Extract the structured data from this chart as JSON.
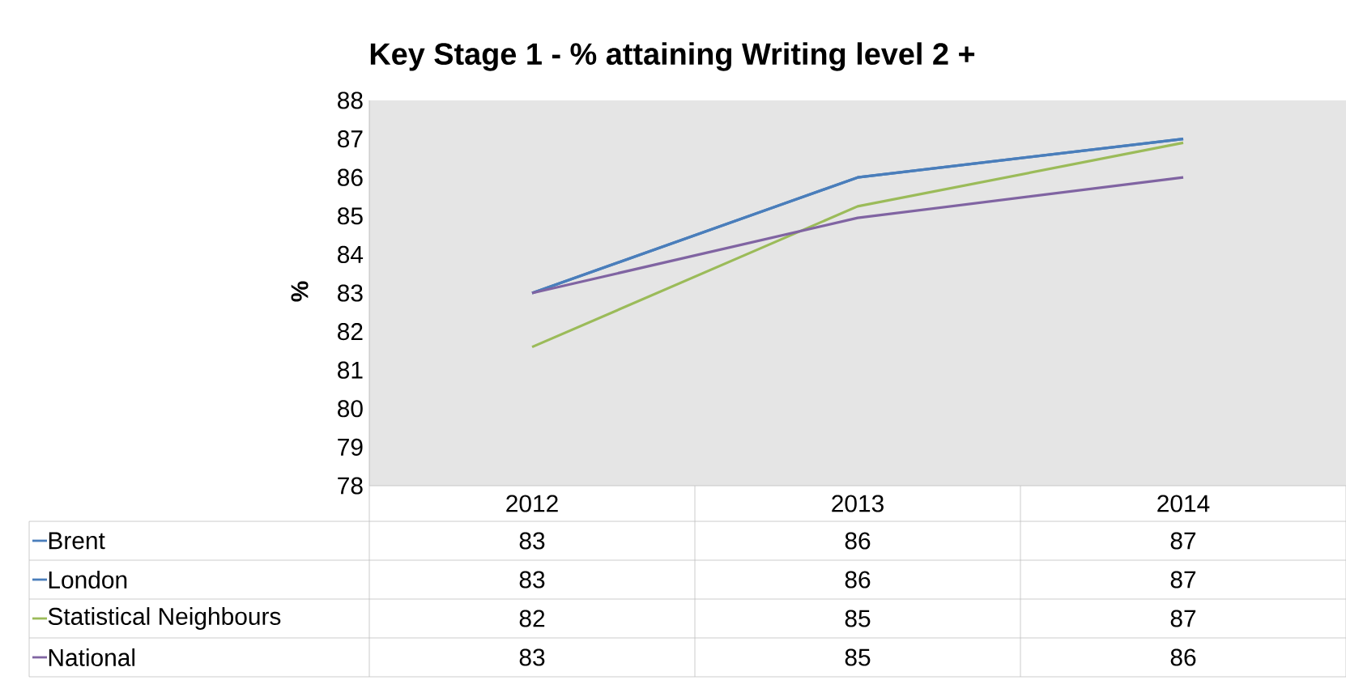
{
  "chart_data": {
    "type": "line",
    "title": "Key Stage 1 - % attaining Writing level 2 +",
    "ylabel": "%",
    "categories": [
      "2012",
      "2013",
      "2014"
    ],
    "series": [
      {
        "name": "Brent",
        "color": "#4a7ebb",
        "values": [
          83,
          86,
          87
        ],
        "value_labels": [
          "83",
          "86",
          "87"
        ]
      },
      {
        "name": "London",
        "color": "#4a7ebb",
        "values": [
          83,
          86,
          87
        ],
        "value_labels": [
          "83",
          "86",
          "87"
        ]
      },
      {
        "name": "Statistical Neighbours",
        "color": "#9bbb59",
        "values": [
          81.6,
          85.25,
          86.9
        ],
        "value_labels": [
          "82",
          "85",
          "87"
        ]
      },
      {
        "name": "National",
        "color": "#8064a2",
        "values": [
          83,
          84.95,
          86
        ],
        "value_labels": [
          "83",
          "85",
          "86"
        ]
      }
    ],
    "ylim": [
      78,
      88
    ],
    "yticks": [
      78,
      79,
      80,
      81,
      82,
      83,
      84,
      85,
      86,
      87,
      88
    ],
    "legend": "bottom"
  }
}
